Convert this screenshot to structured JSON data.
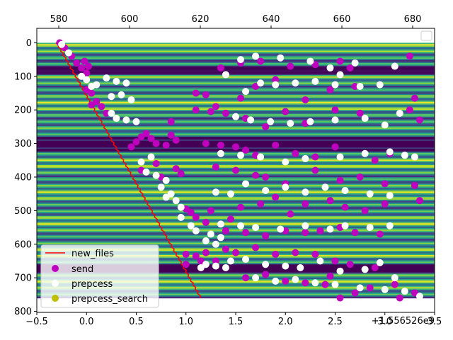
{
  "chart_data": {
    "type": "scatter",
    "x_bottom": {
      "lim": [
        -0.5,
        3.5
      ],
      "ticks": [
        -0.5,
        0.0,
        0.5,
        1.0,
        1.5,
        2.0,
        2.5,
        3.0,
        3.5
      ],
      "tick_labels": [
        "−0.5",
        "0.0",
        "0.5",
        "1.0",
        "1.5",
        "2.0",
        "2.5",
        "3.0",
        "3.5"
      ],
      "offset_label": "+1.556526e9"
    },
    "x_top": {
      "lim": [
        573.8,
        686.2
      ],
      "ticks": [
        580,
        600,
        620,
        640,
        660,
        680
      ],
      "tick_labels": [
        "580",
        "600",
        "620",
        "640",
        "660",
        "680"
      ]
    },
    "y": {
      "lim": [
        803,
        -43
      ],
      "inverted": true,
      "ticks": [
        0,
        100,
        200,
        300,
        400,
        500,
        600,
        700,
        800
      ],
      "tick_labels": [
        "0",
        "100",
        "200",
        "300",
        "400",
        "500",
        "600",
        "700",
        "800"
      ]
    },
    "background": {
      "type": "heatmap",
      "colormap": "viridis",
      "extent_y": [
        0,
        760
      ]
    },
    "legend": {
      "upper_right": "empty",
      "lower_left": [
        "new_files",
        "send",
        "prepcess",
        "prepcess_search"
      ]
    },
    "series": [
      {
        "name": "new_files",
        "kind": "line",
        "color": "#ff0000",
        "x": [
          -0.3,
          1.15
        ],
        "y": [
          0,
          760
        ]
      },
      {
        "name": "send",
        "kind": "scatter",
        "color": "#bf00bf",
        "points": [
          [
            -0.27,
            0
          ],
          [
            -0.22,
            15
          ],
          [
            -0.15,
            40
          ],
          [
            -0.1,
            60
          ],
          [
            -0.05,
            75
          ],
          [
            0.0,
            90
          ],
          [
            0.02,
            70
          ],
          [
            -0.02,
            55
          ],
          [
            0.0,
            140
          ],
          [
            0.05,
            150
          ],
          [
            0.1,
            175
          ],
          [
            0.15,
            190
          ],
          [
            0.2,
            210
          ],
          [
            0.05,
            185
          ],
          [
            0.6,
            270
          ],
          [
            0.65,
            285
          ],
          [
            0.7,
            300
          ],
          [
            0.45,
            310
          ],
          [
            0.5,
            295
          ],
          [
            0.55,
            280
          ],
          [
            0.85,
            275
          ],
          [
            0.9,
            290
          ],
          [
            0.8,
            305
          ],
          [
            0.55,
            380
          ],
          [
            0.7,
            360
          ],
          [
            0.9,
            375
          ],
          [
            0.95,
            390
          ],
          [
            0.75,
            400
          ],
          [
            0.85,
            235
          ],
          [
            1.0,
            495
          ],
          [
            1.05,
            505
          ],
          [
            1.1,
            520
          ],
          [
            1.2,
            535
          ],
          [
            1.25,
            500
          ],
          [
            1.35,
            540
          ],
          [
            1.45,
            525
          ],
          [
            1.0,
            630
          ],
          [
            1.1,
            635
          ],
          [
            1.2,
            625
          ],
          [
            1.3,
            650
          ],
          [
            1.0,
            660
          ],
          [
            1.15,
            650
          ],
          [
            1.35,
            75
          ],
          [
            1.55,
            60
          ],
          [
            1.75,
            55
          ],
          [
            2.05,
            70
          ],
          [
            2.3,
            65
          ],
          [
            2.55,
            55
          ],
          [
            3.25,
            40
          ],
          [
            2.65,
            75
          ],
          [
            1.1,
            150
          ],
          [
            1.2,
            155
          ],
          [
            1.3,
            190
          ],
          [
            1.55,
            165
          ],
          [
            1.7,
            130
          ],
          [
            1.9,
            110
          ],
          [
            2.2,
            170
          ],
          [
            2.45,
            140
          ],
          [
            2.7,
            130
          ],
          [
            3.3,
            165
          ],
          [
            1.1,
            200
          ],
          [
            1.25,
            205
          ],
          [
            1.4,
            210
          ],
          [
            1.6,
            225
          ],
          [
            1.8,
            250
          ],
          [
            2.0,
            205
          ],
          [
            2.2,
            240
          ],
          [
            2.5,
            200
          ],
          [
            2.75,
            210
          ],
          [
            3.25,
            200
          ],
          [
            3.35,
            230
          ],
          [
            1.2,
            300
          ],
          [
            1.35,
            305
          ],
          [
            1.5,
            310
          ],
          [
            1.6,
            320
          ],
          [
            1.7,
            335
          ],
          [
            1.9,
            305
          ],
          [
            2.1,
            330
          ],
          [
            2.3,
            340
          ],
          [
            2.5,
            310
          ],
          [
            2.9,
            350
          ],
          [
            3.05,
            330
          ],
          [
            1.3,
            370
          ],
          [
            1.5,
            380
          ],
          [
            1.7,
            395
          ],
          [
            1.8,
            400
          ],
          [
            2.0,
            420
          ],
          [
            2.3,
            380
          ],
          [
            2.55,
            410
          ],
          [
            2.75,
            400
          ],
          [
            3.0,
            420
          ],
          [
            3.3,
            425
          ],
          [
            1.55,
            490
          ],
          [
            1.75,
            480
          ],
          [
            1.9,
            460
          ],
          [
            2.05,
            510
          ],
          [
            2.2,
            480
          ],
          [
            2.45,
            470
          ],
          [
            2.6,
            490
          ],
          [
            2.8,
            500
          ],
          [
            3.0,
            480
          ],
          [
            3.35,
            470
          ],
          [
            1.4,
            560
          ],
          [
            1.6,
            565
          ],
          [
            1.8,
            575
          ],
          [
            2.0,
            560
          ],
          [
            2.2,
            565
          ],
          [
            2.35,
            560
          ],
          [
            2.55,
            550
          ],
          [
            2.7,
            565
          ],
          [
            2.95,
            570
          ],
          [
            1.4,
            615
          ],
          [
            1.5,
            625
          ],
          [
            1.7,
            610
          ],
          [
            1.9,
            630
          ],
          [
            2.1,
            625
          ],
          [
            2.3,
            630
          ],
          [
            2.5,
            650
          ],
          [
            2.65,
            660
          ],
          [
            2.9,
            670
          ],
          [
            1.6,
            700
          ],
          [
            1.8,
            690
          ],
          [
            2.0,
            710
          ],
          [
            2.2,
            715
          ],
          [
            2.4,
            720
          ],
          [
            2.55,
            760
          ],
          [
            2.7,
            745
          ],
          [
            2.85,
            730
          ],
          [
            3.1,
            720
          ],
          [
            3.3,
            745
          ],
          [
            3.15,
            760
          ],
          [
            2.45,
            695
          ]
        ]
      },
      {
        "name": "prepcess",
        "kind": "scatter",
        "color": "#ffffff",
        "points": [
          [
            -0.25,
            5
          ],
          [
            -0.18,
            30
          ],
          [
            -0.05,
            100
          ],
          [
            0.0,
            110
          ],
          [
            0.05,
            130
          ],
          [
            0.1,
            125
          ],
          [
            0.2,
            105
          ],
          [
            0.3,
            115
          ],
          [
            0.4,
            120
          ],
          [
            0.25,
            160
          ],
          [
            0.35,
            155
          ],
          [
            0.45,
            170
          ],
          [
            0.3,
            225
          ],
          [
            0.4,
            230
          ],
          [
            0.5,
            235
          ],
          [
            0.25,
            210
          ],
          [
            0.6,
            385
          ],
          [
            0.7,
            395
          ],
          [
            0.55,
            355
          ],
          [
            0.8,
            410
          ],
          [
            0.65,
            340
          ],
          [
            0.75,
            430
          ],
          [
            0.8,
            460
          ],
          [
            0.9,
            470
          ],
          [
            0.95,
            490
          ],
          [
            0.85,
            450
          ],
          [
            0.95,
            520
          ],
          [
            1.05,
            545
          ],
          [
            1.1,
            560
          ],
          [
            1.25,
            570
          ],
          [
            1.35,
            580
          ],
          [
            1.2,
            590
          ],
          [
            1.3,
            600
          ],
          [
            1.2,
            660
          ],
          [
            1.3,
            665
          ],
          [
            1.4,
            670
          ],
          [
            1.15,
            670
          ],
          [
            1.55,
            50
          ],
          [
            1.7,
            40
          ],
          [
            1.95,
            45
          ],
          [
            2.25,
            55
          ],
          [
            2.45,
            75
          ],
          [
            2.7,
            60
          ],
          [
            3.1,
            70
          ],
          [
            2.55,
            95
          ],
          [
            1.4,
            95
          ],
          [
            1.75,
            120
          ],
          [
            1.9,
            125
          ],
          [
            2.1,
            120
          ],
          [
            2.3,
            115
          ],
          [
            2.5,
            125
          ],
          [
            2.75,
            130
          ],
          [
            2.95,
            125
          ],
          [
            1.6,
            145
          ],
          [
            1.5,
            220
          ],
          [
            1.65,
            230
          ],
          [
            1.85,
            235
          ],
          [
            2.05,
            240
          ],
          [
            2.25,
            235
          ],
          [
            2.5,
            230
          ],
          [
            2.8,
            225
          ],
          [
            3.0,
            245
          ],
          [
            3.15,
            210
          ],
          [
            1.35,
            330
          ],
          [
            1.55,
            335
          ],
          [
            1.75,
            340
          ],
          [
            2.0,
            355
          ],
          [
            2.2,
            345
          ],
          [
            2.55,
            340
          ],
          [
            2.8,
            330
          ],
          [
            3.05,
            325
          ],
          [
            3.2,
            335
          ],
          [
            3.3,
            340
          ],
          [
            1.3,
            445
          ],
          [
            1.45,
            450
          ],
          [
            1.6,
            420
          ],
          [
            1.8,
            440
          ],
          [
            2.0,
            430
          ],
          [
            2.2,
            445
          ],
          [
            2.4,
            430
          ],
          [
            2.6,
            440
          ],
          [
            2.85,
            450
          ],
          [
            3.05,
            455
          ],
          [
            1.35,
            540
          ],
          [
            1.55,
            545
          ],
          [
            1.7,
            550
          ],
          [
            1.95,
            555
          ],
          [
            2.2,
            545
          ],
          [
            2.45,
            555
          ],
          [
            2.6,
            545
          ],
          [
            2.85,
            550
          ],
          [
            3.05,
            545
          ],
          [
            1.45,
            650
          ],
          [
            1.6,
            645
          ],
          [
            1.8,
            660
          ],
          [
            2.0,
            665
          ],
          [
            2.15,
            670
          ],
          [
            2.35,
            650
          ],
          [
            2.55,
            680
          ],
          [
            2.8,
            675
          ],
          [
            2.95,
            655
          ],
          [
            1.7,
            700
          ],
          [
            1.9,
            710
          ],
          [
            2.1,
            705
          ],
          [
            2.3,
            715
          ],
          [
            2.5,
            720
          ],
          [
            2.75,
            730
          ],
          [
            3.0,
            735
          ],
          [
            3.2,
            740
          ],
          [
            3.35,
            755
          ],
          [
            3.1,
            700
          ]
        ]
      },
      {
        "name": "prepcess_search",
        "kind": "scatter",
        "color": "#bfbf00",
        "points": []
      }
    ]
  }
}
